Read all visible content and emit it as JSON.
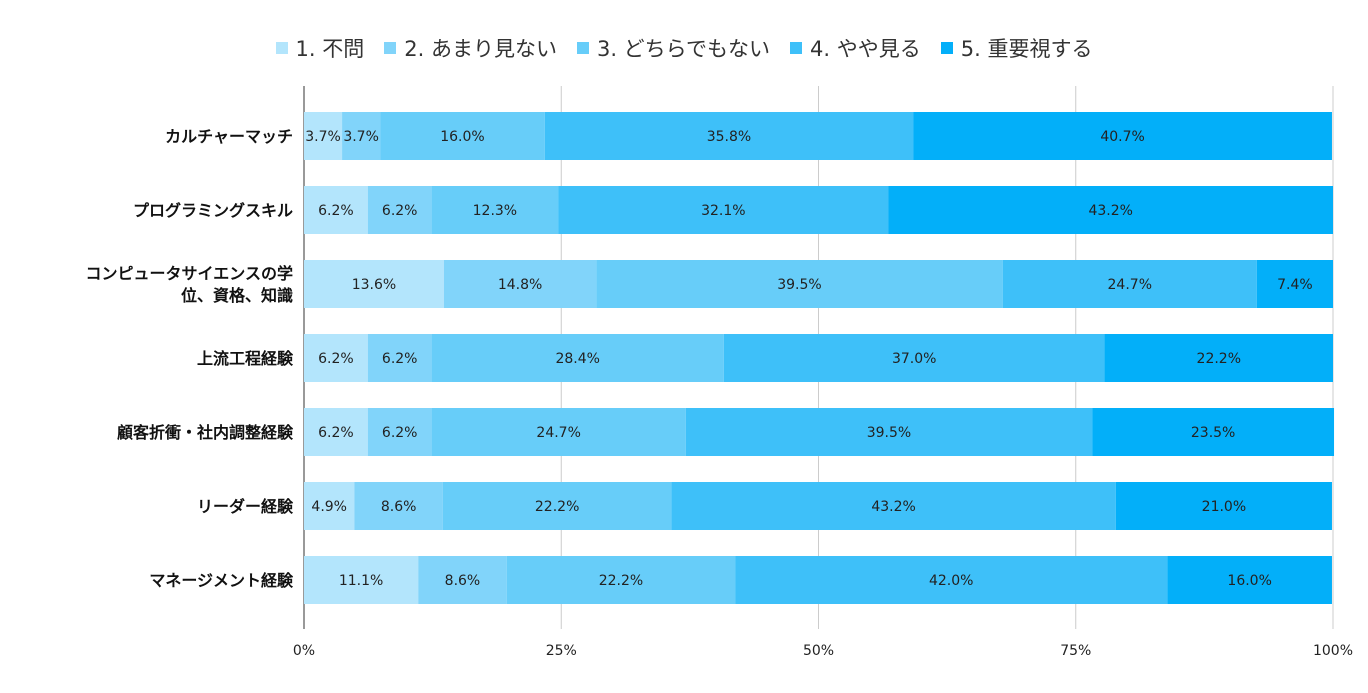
{
  "chart_data": {
    "type": "bar",
    "orientation": "horizontal",
    "stacked": "percent",
    "title": "",
    "xlabel": "",
    "ylabel": "",
    "xlim": [
      0,
      100
    ],
    "grid": true,
    "legend_position": "top",
    "x_ticks": [
      "0%",
      "25%",
      "50%",
      "75%",
      "100%"
    ],
    "categories": [
      [
        "カルチャーマッチ"
      ],
      [
        "プログラミングスキル"
      ],
      [
        "コンピュータサイエンスの学",
        "位、資格、知識"
      ],
      [
        "上流工程経験"
      ],
      [
        "顧客折衝・社内調整経験"
      ],
      [
        "リーダー経験"
      ],
      [
        "マネージメント経験"
      ]
    ],
    "series": [
      {
        "name": "1. 不問",
        "color": "#b3e5fc",
        "values": [
          3.7,
          6.2,
          13.6,
          6.2,
          6.2,
          4.9,
          11.1
        ]
      },
      {
        "name": "2. あまり見ない",
        "color": "#81d4fa",
        "values": [
          3.7,
          6.2,
          14.8,
          6.2,
          6.2,
          8.6,
          8.6
        ]
      },
      {
        "name": "3. どちらでもない",
        "color": "#67cdf9",
        "values": [
          16.0,
          12.3,
          39.5,
          28.4,
          24.7,
          22.2,
          22.2
        ]
      },
      {
        "name": "4. やや見る",
        "color": "#3ec0f9",
        "values": [
          35.8,
          32.1,
          24.7,
          37.0,
          39.5,
          43.2,
          42.0
        ]
      },
      {
        "name": "5. 重要視する",
        "color": "#03aff9",
        "values": [
          40.7,
          43.2,
          7.4,
          22.2,
          23.5,
          21.0,
          16.0
        ]
      }
    ]
  }
}
